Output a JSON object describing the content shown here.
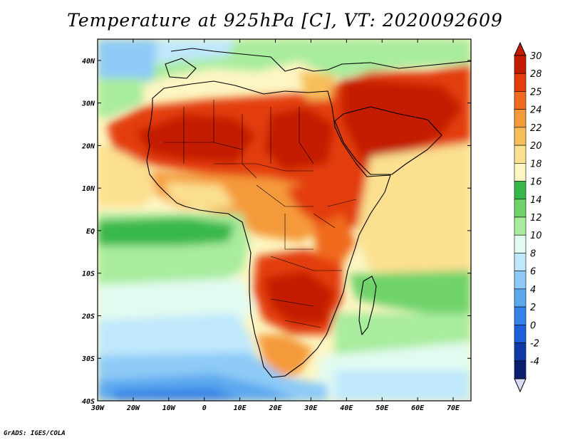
{
  "title": "Temperature at 925hPa [C], VT: 2020092609",
  "credit": "GrADS: IGES/COLA",
  "map": {
    "lon_range": [
      -30,
      75
    ],
    "lat_range": [
      -40,
      45
    ],
    "x_ticks": [
      "30W",
      "20W",
      "10W",
      "0",
      "10E",
      "20E",
      "30E",
      "40E",
      "50E",
      "60E",
      "70E"
    ],
    "y_ticks": [
      "40N",
      "30N",
      "20N",
      "10N",
      "EQ",
      "10S",
      "20S",
      "30S",
      "40S"
    ]
  },
  "colorbar": {
    "labels": [
      "30",
      "28",
      "25",
      "24",
      "22",
      "20",
      "18",
      "16",
      "14",
      "12",
      "10",
      "8",
      "6",
      "4",
      "2",
      "0",
      "-2",
      "-4"
    ],
    "colors": [
      "#c31b00",
      "#e33d0a",
      "#f06a1f",
      "#f59a3a",
      "#f7be5a",
      "#fbe090",
      "#fdf6c2",
      "#37b84a",
      "#6fd36b",
      "#a8ec9d",
      "#e2fbf1",
      "#bfe8fc",
      "#8dcaf7",
      "#5ba8ef",
      "#3682e6",
      "#1d5fd9",
      "#0f3aa8",
      "#0a1f6e"
    ]
  }
}
